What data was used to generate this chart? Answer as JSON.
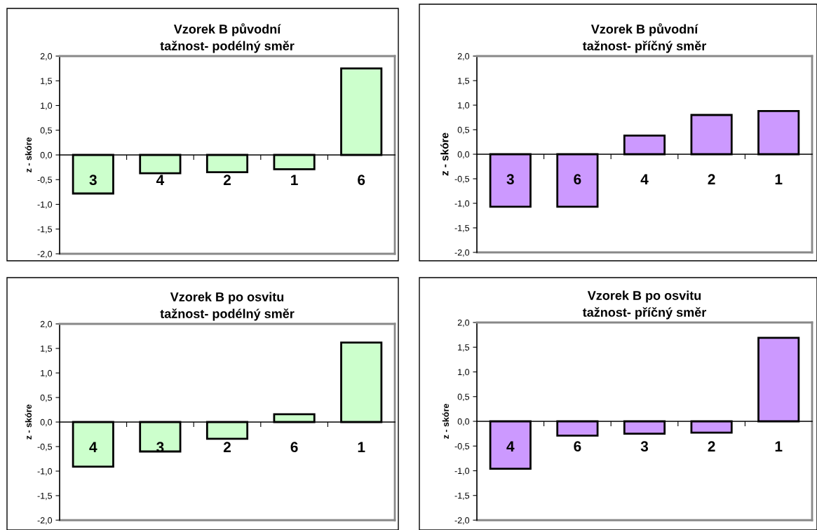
{
  "chart_data": [
    {
      "type": "bar",
      "title": "Vzorek B původní\ntažnost- podélný směr",
      "ylabel": "z - skóre",
      "categories": [
        "3",
        "4",
        "2",
        "1",
        "6"
      ],
      "values": [
        -0.78,
        -0.37,
        -0.35,
        -0.29,
        1.75
      ],
      "color": "#ccffcc",
      "ylim": [
        -2.0,
        2.0
      ],
      "yticks": [
        {
          "value": -2.0,
          "label": "-2,0"
        },
        {
          "value": -1.5,
          "label": "-1,5"
        },
        {
          "value": -1.0,
          "label": "-1,0"
        },
        {
          "value": -0.5,
          "label": "-0,5"
        },
        {
          "value": 0.0,
          "label": "0,0"
        },
        {
          "value": 0.5,
          "label": "0,5"
        },
        {
          "value": 1.0,
          "label": "1,0"
        },
        {
          "value": 1.5,
          "label": "1,5"
        },
        {
          "value": 2.0,
          "label": "2,0"
        }
      ],
      "grid": false
    },
    {
      "type": "bar",
      "title": "Vzorek B původní\ntažnost- příčný směr",
      "ylabel": "z - skóre",
      "categories": [
        "3",
        "6",
        "4",
        "2",
        "1"
      ],
      "values": [
        -1.07,
        -1.07,
        0.38,
        0.8,
        0.88
      ],
      "color": "#cc99ff",
      "ylim": [
        -2.0,
        2.0
      ],
      "yticks": [
        {
          "value": -2.0,
          "label": "-2,0"
        },
        {
          "value": -1.5,
          "label": "-1,5"
        },
        {
          "value": -1.0,
          "label": "-1,0"
        },
        {
          "value": -0.5,
          "label": "-0,5"
        },
        {
          "value": 0.0,
          "label": "0,0"
        },
        {
          "value": 0.5,
          "label": "0,5"
        },
        {
          "value": 1.0,
          "label": "1,0"
        },
        {
          "value": 1.5,
          "label": "1,5"
        },
        {
          "value": 2.0,
          "label": "2,0"
        }
      ],
      "grid": false
    },
    {
      "type": "bar",
      "title": "Vzorek B po osvitu\ntažnost- podélný směr",
      "ylabel": "z - skóre",
      "categories": [
        "4",
        "3",
        "2",
        "6",
        "1"
      ],
      "values": [
        -0.91,
        -0.6,
        -0.34,
        0.16,
        1.62
      ],
      "color": "#ccffcc",
      "ylim": [
        -2.0,
        2.0
      ],
      "yticks": [
        {
          "value": -2.0,
          "label": "-2,0"
        },
        {
          "value": -1.5,
          "label": "-1,5"
        },
        {
          "value": -1.0,
          "label": "-1,0"
        },
        {
          "value": -0.5,
          "label": "-0,5"
        },
        {
          "value": 0.0,
          "label": "0,0"
        },
        {
          "value": 0.5,
          "label": "0,5"
        },
        {
          "value": 1.0,
          "label": "1,0"
        },
        {
          "value": 1.5,
          "label": "1,5"
        },
        {
          "value": 2.0,
          "label": "2,0"
        }
      ],
      "grid": false
    },
    {
      "type": "bar",
      "title": "Vzorek B po osvitu\ntažnost- příčný směr",
      "ylabel": "z - skóre",
      "categories": [
        "4",
        "6",
        "3",
        "2",
        "1"
      ],
      "values": [
        -0.96,
        -0.29,
        -0.25,
        -0.23,
        1.69
      ],
      "color": "#cc99ff",
      "ylim": [
        -2.0,
        2.0
      ],
      "yticks": [
        {
          "value": -2.0,
          "label": "-2,0"
        },
        {
          "value": -1.5,
          "label": "-1,5"
        },
        {
          "value": -1.0,
          "label": "-1,0"
        },
        {
          "value": -0.5,
          "label": "-0,5"
        },
        {
          "value": 0.0,
          "label": "0,0"
        },
        {
          "value": 0.5,
          "label": "0,5"
        },
        {
          "value": 1.0,
          "label": "1,0"
        },
        {
          "value": 1.5,
          "label": "1,5"
        },
        {
          "value": 2.0,
          "label": "2,0"
        }
      ],
      "grid": false
    }
  ]
}
